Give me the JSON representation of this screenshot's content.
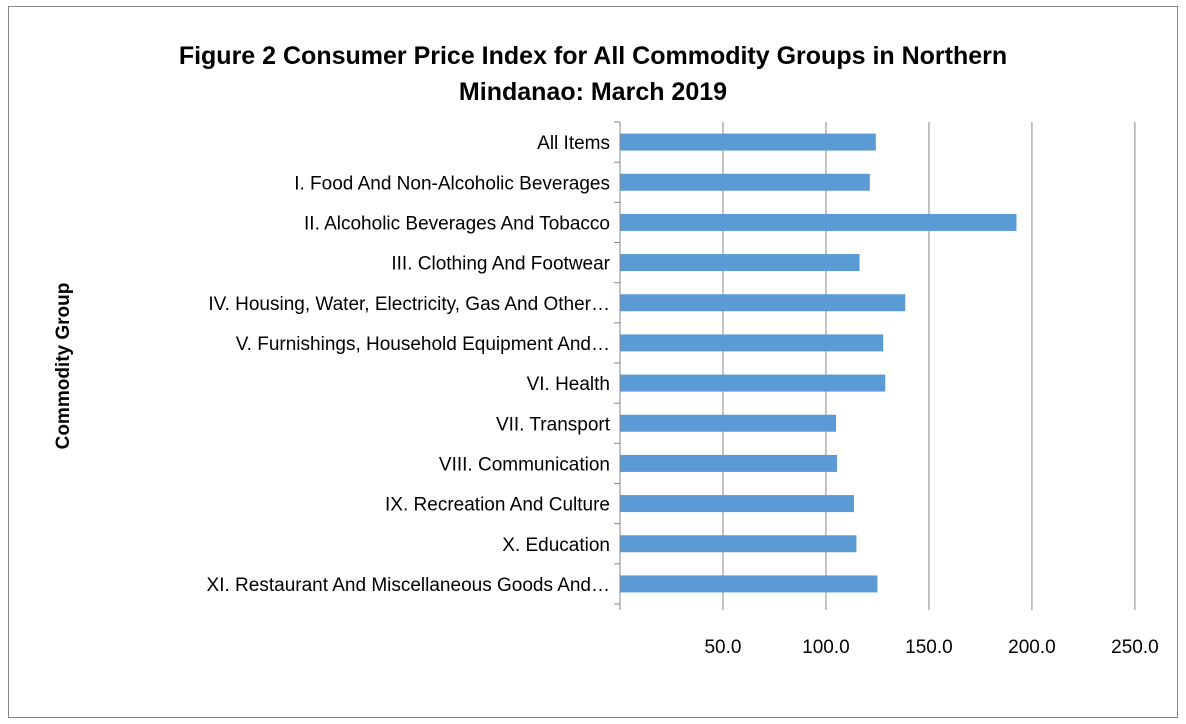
{
  "chart_data": {
    "type": "bar",
    "orientation": "horizontal",
    "title": "Figure 2 Consumer Price Index for All Commodity Groups in Northern Mindanao: March 2019",
    "title_lines": [
      "Figure 2 Consumer Price Index for All Commodity Groups in Northern",
      "Mindanao: March 2019"
    ],
    "ylabel": "Commodity Group",
    "xlabel": "",
    "xlim": [
      0,
      250
    ],
    "xticks": [
      "50.0",
      "100.0",
      "150.0",
      "200.0",
      "250.0"
    ],
    "grid": true,
    "legend": "none",
    "bar_color": "#5b9bd5",
    "categories": [
      "All Items",
      "I. Food And Non-Alcoholic Beverages",
      "II. Alcoholic Beverages And Tobacco",
      "III. Clothing And Footwear",
      "IV. Housing, Water, Electricity, Gas And Other…",
      "V. Furnishings, Household Equipment And…",
      "VI. Health",
      "VII. Transport",
      "VIII. Communication",
      "IX. Recreation And Culture",
      "X. Education",
      "XI. Restaurant And Miscellaneous Goods And…"
    ],
    "values": [
      124.2,
      121.3,
      192.5,
      116.3,
      138.5,
      127.8,
      128.8,
      104.9,
      105.4,
      113.6,
      114.8,
      125.0
    ]
  }
}
